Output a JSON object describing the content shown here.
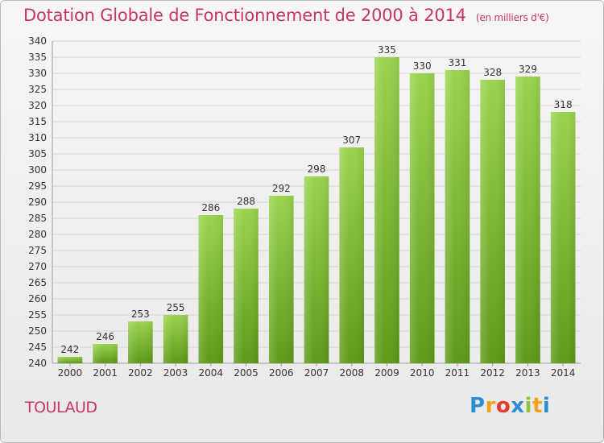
{
  "title": "Dotation Globale de Fonctionnement de 2000 à 2014",
  "unit_note": "(en milliers d'€)",
  "commune": "TOULAUD",
  "logo": {
    "letters": [
      "P",
      "r",
      "o",
      "x",
      "i",
      "t",
      "i"
    ],
    "colors": [
      "#2e8fd0",
      "#f0a11c",
      "#e33b2c",
      "#2e8fd0",
      "#8fc43a",
      "#f0a11c",
      "#2e8fd0"
    ]
  },
  "colors": {
    "bar_top": "#9ad44e",
    "bar_bottom": "#5e9a18",
    "axis_text": "#333333",
    "grid": "#d4d4d4",
    "title": "#c8356a"
  },
  "chart_data": {
    "type": "bar",
    "categories": [
      "2000",
      "2001",
      "2002",
      "2003",
      "2004",
      "2005",
      "2006",
      "2007",
      "2008",
      "2009",
      "2010",
      "2011",
      "2012",
      "2013",
      "2014"
    ],
    "values": [
      242,
      246,
      253,
      255,
      286,
      288,
      292,
      298,
      307,
      335,
      330,
      331,
      328,
      329,
      318
    ],
    "ylim": [
      240,
      340
    ],
    "ytick_step": 5,
    "grid": true,
    "data_labels": true
  }
}
